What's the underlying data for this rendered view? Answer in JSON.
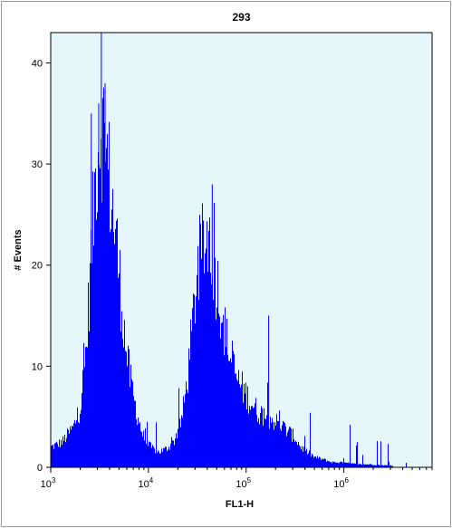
{
  "chart_data": {
    "type": "histogram",
    "title": "293",
    "xlabel": "FL1-H",
    "ylabel": "# Events",
    "x_scale": "log",
    "xlim": [
      1000,
      8000000
    ],
    "ylim": [
      0,
      43
    ],
    "x_ticks": [
      {
        "value": 1000,
        "base": "10",
        "exp": "3"
      },
      {
        "value": 10000,
        "base": "10",
        "exp": "4"
      },
      {
        "value": 100000,
        "base": "10",
        "exp": "5"
      },
      {
        "value": 1000000,
        "base": "10",
        "exp": "6"
      }
    ],
    "y_ticks": [
      0,
      10,
      20,
      30,
      40
    ],
    "fill_color": "#0000ff",
    "background_color": "#e6f7fb",
    "series": [
      {
        "x": [
          1000,
          1300,
          1700,
          2000,
          2300,
          2600,
          2900,
          3200,
          3500,
          3800,
          4200,
          4700,
          5200,
          5800,
          6500,
          7300,
          8200,
          9200,
          10500,
          12500,
          15000,
          18000,
          22000,
          25000,
          28000,
          31000,
          34000,
          37000,
          40000,
          44000,
          48000,
          53000,
          58000,
          64000,
          72000,
          82000,
          95000,
          110000,
          130000,
          160000,
          200000,
          250000,
          310000,
          360000,
          420000,
          500000,
          600000,
          750000,
          900000,
          1100000,
          1400000,
          1800000,
          2500000,
          4000000,
          8000000
        ],
        "y": [
          2,
          2.5,
          4,
          6,
          12,
          22,
          30,
          34,
          33,
          30,
          26,
          22,
          17,
          12,
          8.5,
          6,
          4,
          2.5,
          2,
          1.5,
          1.8,
          2.5,
          5,
          9,
          14,
          19,
          21,
          22,
          23,
          21,
          19,
          17,
          14,
          12,
          10,
          8.5,
          7.5,
          6.5,
          5.5,
          5,
          4.5,
          3.8,
          3,
          2,
          1.5,
          1,
          0.8,
          0.5,
          0.5,
          0.4,
          0.3,
          0.3,
          0.2,
          0.1,
          0.1
        ]
      }
    ]
  }
}
